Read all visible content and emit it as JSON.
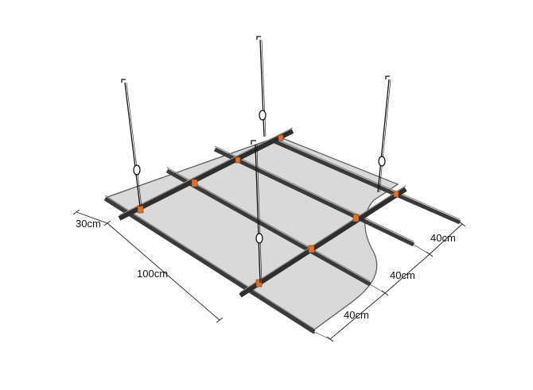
{
  "diagram": {
    "dimensions": {
      "hanger_offset": "30cm",
      "span_length": "100cm",
      "spacing_1": "40cm",
      "spacing_2": "40cm",
      "spacing_3": "40cm"
    },
    "colors": {
      "board": "#d9d9d9",
      "board_edge": "#555555",
      "rail": "#3a3a3a",
      "rail_light": "#8a8a8a",
      "connector": "#e0702a",
      "line": "#222222"
    }
  }
}
